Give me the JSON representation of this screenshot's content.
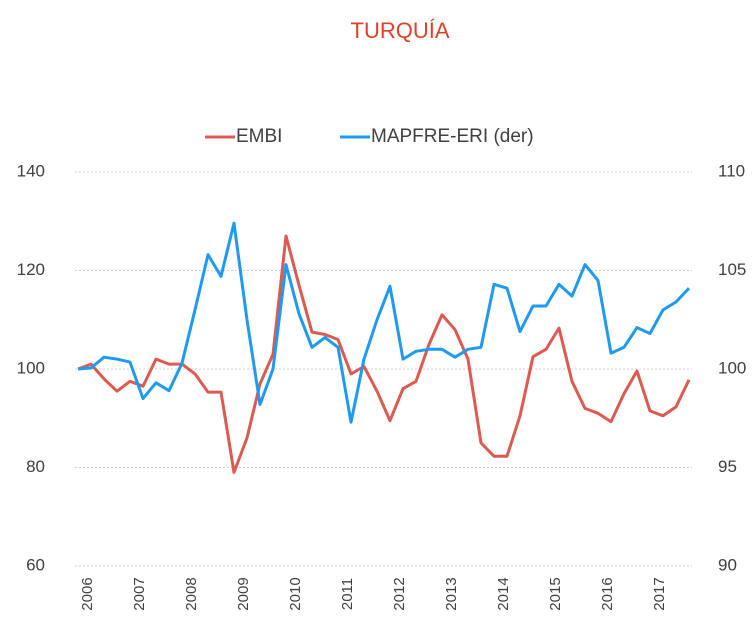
{
  "chart_data": {
    "type": "line",
    "title": "TURQUÍA",
    "title_color": "#e0402a",
    "categories": [
      "2006",
      null,
      null,
      null,
      "2007",
      null,
      null,
      null,
      "2008",
      null,
      null,
      null,
      "2009",
      null,
      null,
      null,
      "2010",
      null,
      null,
      null,
      "2011",
      null,
      null,
      null,
      "2012",
      null,
      null,
      null,
      "2013",
      null,
      null,
      null,
      "2014",
      null,
      null,
      null,
      "2015",
      null,
      null,
      null,
      "2016",
      null,
      null,
      null,
      "2017",
      null,
      null,
      null
    ],
    "series": [
      {
        "name": "EMBI",
        "color": "#dc5a50",
        "values": [
          100,
          101,
          98,
          95.5,
          97.5,
          96.5,
          102,
          101,
          101,
          99,
          95.3,
          95.3,
          79,
          86,
          97,
          103,
          127,
          117,
          107.5,
          107,
          106,
          99,
          100.5,
          95.5,
          89.5,
          96,
          97.5,
          105,
          111,
          108,
          102,
          85,
          82.3,
          82.3,
          90.5,
          102.5,
          104,
          108.3,
          97.5,
          92,
          91,
          89.3,
          95,
          99.6,
          91.5,
          90.5,
          92.3,
          97.8
        ]
      },
      {
        "name": "MAPFRE-ERI (der)",
        "color": "#1e9bf0",
        "axis": "y2",
        "values": [
          100,
          100.05,
          100.6,
          100.5,
          100.35,
          98.5,
          99.3,
          98.9,
          100.3,
          103,
          105.8,
          104.7,
          107.4,
          102.5,
          98.2,
          100,
          105.3,
          102.8,
          101.1,
          101.6,
          101.1,
          97.3,
          100.5,
          102.5,
          104.2,
          100.5,
          100.9,
          101,
          101,
          100.6,
          101,
          101.1,
          104.3,
          104.1,
          101.9,
          103.2,
          103.2,
          104.3,
          103.7,
          105.3,
          104.5,
          100.8,
          101.1,
          102.1,
          101.8,
          103,
          103.4,
          104.1
        ]
      }
    ],
    "ylim": [
      60,
      140
    ],
    "yticks": [
      60,
      80,
      100,
      120,
      140
    ],
    "y2lim": [
      90,
      110
    ],
    "y2ticks": [
      90,
      95,
      100,
      105,
      110
    ],
    "grid": true,
    "legend": "top"
  }
}
